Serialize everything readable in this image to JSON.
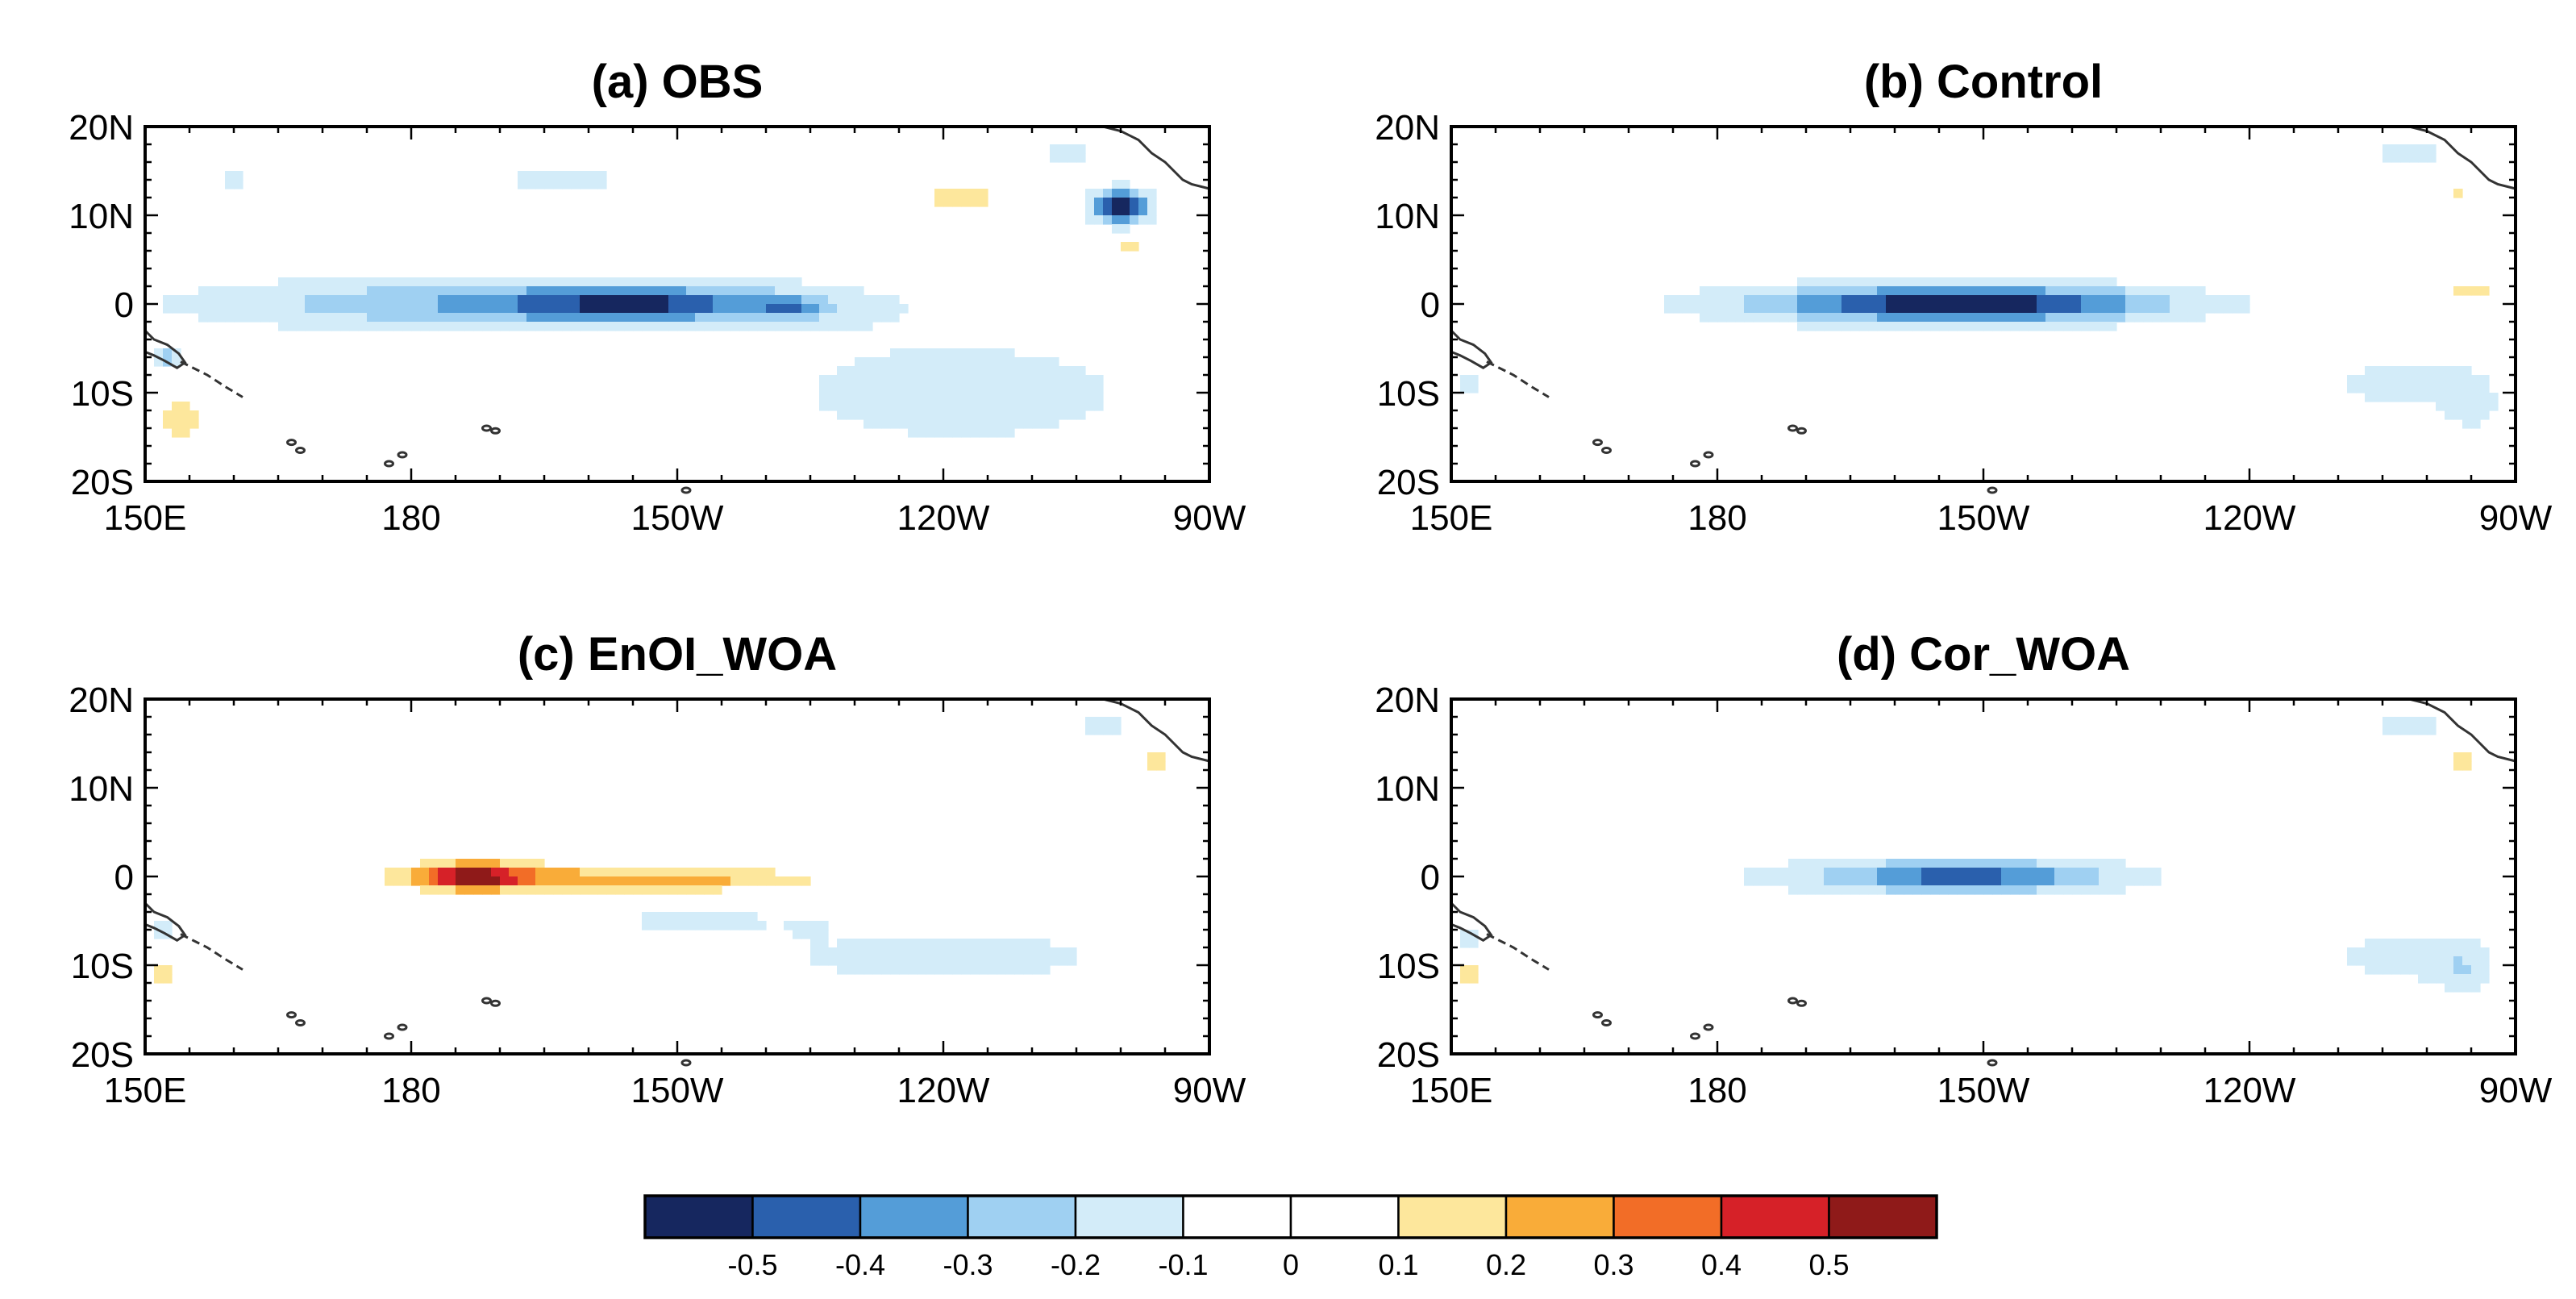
{
  "chart_data": [
    {
      "type": "heatmap",
      "id": "a",
      "title": "(a) OBS",
      "x_ticks": [
        "150E",
        "180",
        "150W",
        "120W",
        "90W"
      ],
      "y_ticks": [
        "20N",
        "10N",
        "0",
        "10S",
        "20S"
      ],
      "xlim": [
        150,
        270
      ],
      "ylim": [
        -20,
        20
      ],
      "features": [
        {
          "lon": 188,
          "lat": 0,
          "sx": 36,
          "sy": 3.2,
          "amp": -0.28,
          "label": "equatorial cold tongue"
        },
        {
          "lon": 205,
          "lat": 0,
          "sx": 14,
          "sy": 1.6,
          "amp": -0.28,
          "label": "core west"
        },
        {
          "lon": 223,
          "lat": -0.5,
          "sx": 4,
          "sy": 1.2,
          "amp": -0.2,
          "label": "core near 140W"
        },
        {
          "lon": 215,
          "lat": 0,
          "sx": 22,
          "sy": 3.4,
          "amp": -0.07,
          "label": "equatorial envelope"
        },
        {
          "lon": 242,
          "lat": -10,
          "sx": 24,
          "sy": 7,
          "amp": -0.16,
          "label": "south-east cool region"
        },
        {
          "lon": 197,
          "lat": 14,
          "sx": 12,
          "sy": 1.2,
          "amp": -0.14,
          "label": "north band"
        },
        {
          "lon": 160,
          "lat": 14,
          "sx": 2.5,
          "sy": 1,
          "amp": -0.14,
          "label": "north-west patch"
        },
        {
          "lon": 260,
          "lat": 11,
          "sx": 3.5,
          "sy": 2,
          "amp": -0.55,
          "label": "eastern cold spot"
        },
        {
          "lon": 242,
          "lat": 12,
          "sx": 5,
          "sy": 1.5,
          "amp": 0.17,
          "label": "warm patch 120W"
        },
        {
          "lon": 261,
          "lat": 6.5,
          "sx": 2.2,
          "sy": 0.8,
          "amp": 0.13,
          "label": "warm patch south"
        },
        {
          "lon": 268,
          "lat": 10,
          "sx": 1,
          "sy": 1,
          "amp": 0.15,
          "label": "warm coast"
        },
        {
          "lon": 254,
          "lat": 17,
          "sx": 3.5,
          "sy": 1.5,
          "amp": -0.15,
          "label": "north-east cool"
        },
        {
          "lon": 152.5,
          "lat": -6,
          "sx": 1.2,
          "sy": 1.2,
          "amp": -0.35,
          "label": "western cold spot"
        },
        {
          "lon": 154,
          "lat": -13,
          "sx": 2.5,
          "sy": 2,
          "amp": 0.2,
          "label": "south-west warm"
        }
      ]
    },
    {
      "type": "heatmap",
      "id": "b",
      "title": "(b) Control",
      "x_ticks": [
        "150E",
        "180",
        "150W",
        "120W",
        "90W"
      ],
      "y_ticks": [
        "20N",
        "10N",
        "0",
        "10S",
        "20S"
      ],
      "xlim": [
        150,
        270
      ],
      "ylim": [
        -20,
        20
      ],
      "features": [
        {
          "lon": 208,
          "lat": 0,
          "sx": 20,
          "sy": 1.8,
          "amp": -0.44,
          "label": "cold tongue core"
        },
        {
          "lon": 205,
          "lat": 0,
          "sx": 36,
          "sy": 3.2,
          "amp": -0.17,
          "label": "equatorial envelope"
        },
        {
          "lon": 258,
          "lat": -9,
          "sx": 11,
          "sy": 3.5,
          "amp": -0.15,
          "label": "south-east cool"
        },
        {
          "lon": 265,
          "lat": -12,
          "sx": 3,
          "sy": 3,
          "amp": -0.12,
          "label": "south-east core"
        },
        {
          "lon": 258,
          "lat": 17,
          "sx": 4,
          "sy": 1.5,
          "amp": -0.2,
          "label": "north-east cool"
        },
        {
          "lon": 265,
          "lat": 13,
          "sx": 1.3,
          "sy": 1,
          "amp": -0.12,
          "label": "east coast cool"
        },
        {
          "lon": 263.5,
          "lat": 12.5,
          "sx": 1,
          "sy": 0.8,
          "amp": 0.18,
          "label": "warm coast dot"
        },
        {
          "lon": 265,
          "lat": 1.5,
          "sx": 3,
          "sy": 0.6,
          "amp": 0.15,
          "label": "warm equatorial coast"
        },
        {
          "lon": 152,
          "lat": -9,
          "sx": 1.2,
          "sy": 2,
          "amp": -0.15,
          "label": "western cool"
        },
        {
          "lon": 152,
          "lat": -13,
          "sx": 0.8,
          "sy": 0.8,
          "amp": 0.15,
          "label": "western warm"
        }
      ]
    },
    {
      "type": "heatmap",
      "id": "c",
      "title": "(c) EnOI_WOA",
      "x_ticks": [
        "150E",
        "180",
        "150W",
        "120W",
        "90W"
      ],
      "y_ticks": [
        "20N",
        "10N",
        "0",
        "10S",
        "20S"
      ],
      "xlim": [
        150,
        270
      ],
      "ylim": [
        -20,
        20
      ],
      "features": [
        {
          "lon": 187,
          "lat": 0,
          "sx": 6,
          "sy": 1.5,
          "amp": 0.45,
          "label": "warm core"
        },
        {
          "lon": 197,
          "lat": 0,
          "sx": 24,
          "sy": 1.6,
          "amp": 0.18,
          "label": "warm band"
        },
        {
          "lon": 212,
          "lat": -0.5,
          "sx": 16,
          "sy": 1.2,
          "amp": 0.12,
          "label": "warm band east"
        },
        {
          "lon": 240,
          "lat": -9,
          "sx": 26,
          "sy": 4,
          "amp": -0.14,
          "label": "south cool band"
        },
        {
          "lon": 212,
          "lat": -5,
          "sx": 10,
          "sy": 1.2,
          "amp": -0.15,
          "label": "south of equator cool"
        },
        {
          "lon": 225,
          "lat": -6,
          "sx": 2,
          "sy": 1,
          "amp": -0.12,
          "label": "cool dot"
        },
        {
          "lon": 258,
          "lat": 17,
          "sx": 4,
          "sy": 1.5,
          "amp": -0.15,
          "label": "north-east cool"
        },
        {
          "lon": 264,
          "lat": 13,
          "sx": 1,
          "sy": 1,
          "amp": 0.3,
          "label": "warm coast"
        },
        {
          "lon": 152,
          "lat": -11,
          "sx": 1,
          "sy": 1,
          "amp": 0.3,
          "label": "western warm"
        },
        {
          "lon": 152,
          "lat": -6,
          "sx": 1.2,
          "sy": 1.5,
          "amp": -0.2,
          "label": "western cool"
        }
      ]
    },
    {
      "type": "heatmap",
      "id": "d",
      "title": "(d) Cor_WOA",
      "x_ticks": [
        "150E",
        "180",
        "150W",
        "120W",
        "90W"
      ],
      "y_ticks": [
        "20N",
        "10N",
        "0",
        "10S",
        "20S"
      ],
      "xlim": [
        150,
        270
      ],
      "ylim": [
        -20,
        20
      ],
      "features": [
        {
          "lon": 208,
          "lat": 0,
          "sx": 14,
          "sy": 1.6,
          "amp": -0.33,
          "label": "cold tongue core"
        },
        {
          "lon": 205,
          "lat": 0,
          "sx": 32,
          "sy": 3,
          "amp": -0.14,
          "label": "equatorial envelope"
        },
        {
          "lon": 258,
          "lat": -9,
          "sx": 11,
          "sy": 3.5,
          "amp": -0.15,
          "label": "south-east cool"
        },
        {
          "lon": 264,
          "lat": -11,
          "sx": 3,
          "sy": 3,
          "amp": -0.12,
          "label": "south-east core"
        },
        {
          "lon": 258,
          "lat": 17,
          "sx": 4,
          "sy": 1.5,
          "amp": -0.2,
          "label": "north-east cool"
        },
        {
          "lon": 264,
          "lat": 13,
          "sx": 1,
          "sy": 1,
          "amp": 0.2,
          "label": "warm coast"
        },
        {
          "lon": 152,
          "lat": -11,
          "sx": 1,
          "sy": 1,
          "amp": 0.22,
          "label": "western warm"
        },
        {
          "lon": 152,
          "lat": -7,
          "sx": 1.2,
          "sy": 1.5,
          "amp": -0.15,
          "label": "western cool"
        }
      ]
    }
  ],
  "colorbar": {
    "levels": [
      -0.5,
      -0.4,
      -0.3,
      -0.2,
      -0.1,
      0,
      0.1,
      0.2,
      0.3,
      0.4,
      0.5
    ],
    "labels": [
      "-0.5",
      "-0.4",
      "-0.3",
      "-0.2",
      "-0.1",
      "0",
      "0.1",
      "0.2",
      "0.3",
      "0.4",
      "0.5"
    ],
    "colors": [
      "#16275f",
      "#2a60ad",
      "#549dd8",
      "#9fd0f2",
      "#d3ecf9",
      "#ffffff",
      "#ffffff",
      "#fde79c",
      "#f9ac39",
      "#f26d27",
      "#d62128",
      "#8f1a19"
    ]
  },
  "land_color": "#333333"
}
